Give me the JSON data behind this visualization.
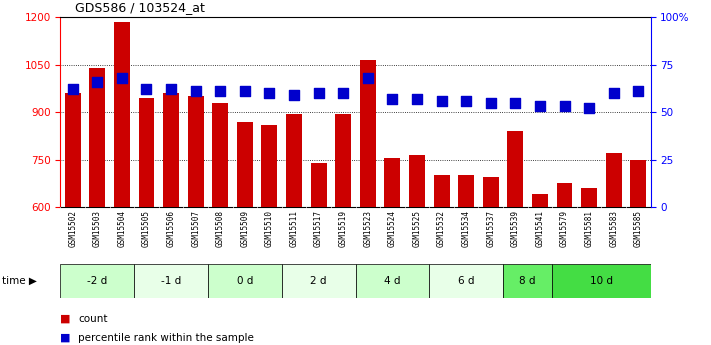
{
  "title": "GDS586 / 103524_at",
  "categories": [
    "GSM15502",
    "GSM15503",
    "GSM15504",
    "GSM15505",
    "GSM15506",
    "GSM15507",
    "GSM15508",
    "GSM15509",
    "GSM15510",
    "GSM15511",
    "GSM15517",
    "GSM15519",
    "GSM15523",
    "GSM15524",
    "GSM15525",
    "GSM15532",
    "GSM15534",
    "GSM15537",
    "GSM15539",
    "GSM15541",
    "GSM15579",
    "GSM15581",
    "GSM15583",
    "GSM15585"
  ],
  "bar_values": [
    960,
    1040,
    1185,
    945,
    960,
    950,
    930,
    870,
    860,
    895,
    740,
    893,
    1065,
    755,
    763,
    700,
    700,
    695,
    840,
    640,
    675,
    660,
    770,
    748
  ],
  "dot_values": [
    62,
    66,
    68,
    62,
    62,
    61,
    61,
    61,
    60,
    59,
    60,
    60,
    68,
    57,
    57,
    56,
    56,
    55,
    55,
    53,
    53,
    52,
    60,
    61
  ],
  "bar_color": "#cc0000",
  "dot_color": "#0000cc",
  "ylim_left": [
    600,
    1200
  ],
  "ylim_right": [
    0,
    100
  ],
  "yticks_left": [
    600,
    750,
    900,
    1050,
    1200
  ],
  "yticks_right": [
    0,
    25,
    50,
    75,
    100
  ],
  "groups": [
    {
      "label": "-2 d",
      "indices": [
        0,
        1,
        2
      ],
      "color": "#ccffcc"
    },
    {
      "label": "-1 d",
      "indices": [
        3,
        4,
        5
      ],
      "color": "#e8ffe8"
    },
    {
      "label": "0 d",
      "indices": [
        6,
        7,
        8
      ],
      "color": "#ccffcc"
    },
    {
      "label": "2 d",
      "indices": [
        9,
        10,
        11
      ],
      "color": "#e8ffe8"
    },
    {
      "label": "4 d",
      "indices": [
        12,
        13,
        14
      ],
      "color": "#ccffcc"
    },
    {
      "label": "6 d",
      "indices": [
        15,
        16,
        17
      ],
      "color": "#e8ffe8"
    },
    {
      "label": "8 d",
      "indices": [
        18,
        19
      ],
      "color": "#66ee66"
    },
    {
      "label": "10 d",
      "indices": [
        20,
        21,
        22,
        23
      ],
      "color": "#44dd44"
    }
  ],
  "legend_count_label": "count",
  "legend_pct_label": "percentile rank within the sample",
  "background_color": "#ffffff",
  "xtick_bg": "#cccccc",
  "bar_width": 0.65,
  "dot_size": 55
}
